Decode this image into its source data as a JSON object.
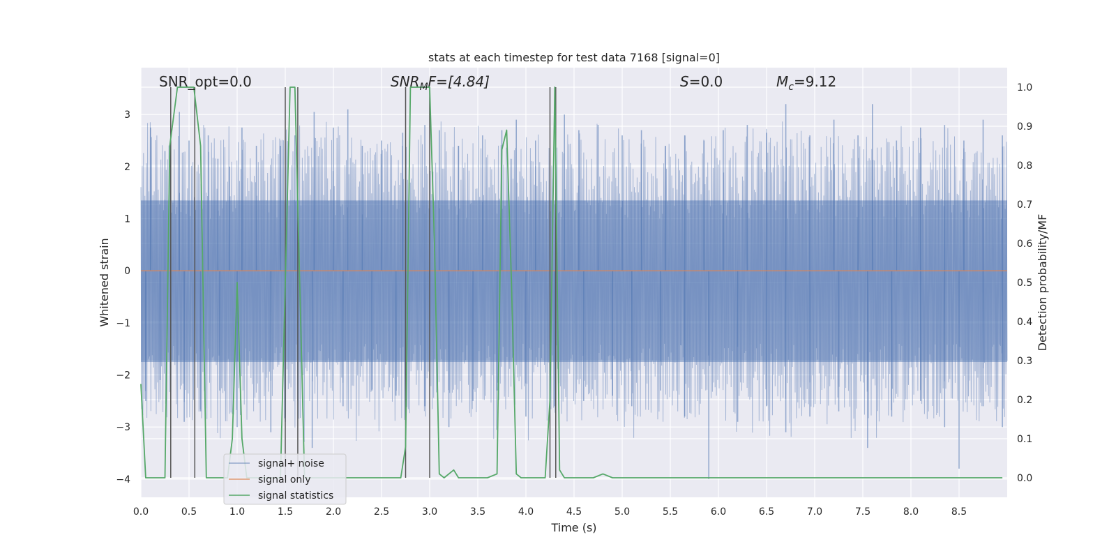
{
  "chart_data": {
    "type": "line",
    "title": "stats at each timestep for test data 7168 [signal=0]",
    "xlabel": "Time (s)",
    "ylabel": "Whitened strain",
    "y2label": "Detection probability/MF",
    "xlim": [
      0.0,
      9.0
    ],
    "ylim": [
      -4.35,
      3.9
    ],
    "y2lim": [
      -0.05,
      1.05
    ],
    "xticks": [
      "0.0",
      "0.5",
      "1.0",
      "1.5",
      "2.0",
      "2.5",
      "3.0",
      "3.5",
      "4.0",
      "4.5",
      "5.0",
      "5.5",
      "6.0",
      "6.5",
      "7.0",
      "7.5",
      "8.0",
      "8.5"
    ],
    "yticks": [
      "3",
      "2",
      "1",
      "0",
      "−1",
      "−2",
      "−3",
      "−4"
    ],
    "y2ticks": [
      "1.0",
      "0.9",
      "0.8",
      "0.7",
      "0.6",
      "0.5",
      "0.4",
      "0.3",
      "0.2",
      "0.1",
      "0.0"
    ],
    "annotations": [
      {
        "id": "snr_opt",
        "text": "SNR_opt=0.0"
      },
      {
        "id": "snr_mf",
        "text": "SNR",
        "sub": "M",
        "rest": "F=[4.84]"
      },
      {
        "id": "s",
        "text": "S",
        "rest": "=0.0"
      },
      {
        "id": "mc",
        "text": "M",
        "sub": "c",
        "rest": "=9.12"
      }
    ],
    "legend": {
      "position": "lower-left",
      "entries": [
        "signal+ noise",
        "signal only",
        "signal statistics"
      ]
    },
    "colors": {
      "background": "#eaeaf2",
      "grid": "#ffffff",
      "noise": "#4c72b0",
      "signal": "#dd8452",
      "stat": "#55a868",
      "vline": "#555555"
    },
    "series": [
      {
        "name": "signal+ noise",
        "axis": "left",
        "note": "dense whitened strain trace, roughly symmetric about 0",
        "core_band": [
          -1.75,
          1.35
        ],
        "spike_peaks_up": [
          [
            0.1,
            2.75
          ],
          [
            0.25,
            2.3
          ],
          [
            0.4,
            3.05
          ],
          [
            0.5,
            2.5
          ],
          [
            0.7,
            2.6
          ],
          [
            0.8,
            2.15
          ],
          [
            0.92,
            2.0
          ],
          [
            1.05,
            2.75
          ],
          [
            1.2,
            2.4
          ],
          [
            1.45,
            2.4
          ],
          [
            1.6,
            2.6
          ],
          [
            1.8,
            3.05
          ],
          [
            2.0,
            2.75
          ],
          [
            2.15,
            3.1
          ],
          [
            2.3,
            2.4
          ],
          [
            2.5,
            2.5
          ],
          [
            2.72,
            2.65
          ],
          [
            2.95,
            2.8
          ],
          [
            3.1,
            2.7
          ],
          [
            3.3,
            2.4
          ],
          [
            3.55,
            2.6
          ],
          [
            3.75,
            2.7
          ],
          [
            3.9,
            2.9
          ],
          [
            4.1,
            2.5
          ],
          [
            4.4,
            3.0
          ],
          [
            4.55,
            2.7
          ],
          [
            4.75,
            2.8
          ],
          [
            5.0,
            2.6
          ],
          [
            5.2,
            2.7
          ],
          [
            5.45,
            2.4
          ],
          [
            5.65,
            2.6
          ],
          [
            5.85,
            2.5
          ],
          [
            6.05,
            2.7
          ],
          [
            6.3,
            2.8
          ],
          [
            6.5,
            2.65
          ],
          [
            6.7,
            3.2
          ],
          [
            6.95,
            2.6
          ],
          [
            7.2,
            2.9
          ],
          [
            7.45,
            2.6
          ],
          [
            7.6,
            3.2
          ],
          [
            7.85,
            2.5
          ],
          [
            8.1,
            2.75
          ],
          [
            8.35,
            2.8
          ],
          [
            8.55,
            2.5
          ],
          [
            8.75,
            2.9
          ],
          [
            8.95,
            2.6
          ]
        ],
        "spike_peaks_down": [
          [
            0.05,
            -2.5
          ],
          [
            0.2,
            -2.1
          ],
          [
            0.45,
            -2.9
          ],
          [
            0.62,
            -2.7
          ],
          [
            0.82,
            -2.3
          ],
          [
            1.0,
            -3.0
          ],
          [
            1.35,
            -3.1
          ],
          [
            1.5,
            -2.9
          ],
          [
            1.78,
            -3.4
          ],
          [
            2.1,
            -2.6
          ],
          [
            2.4,
            -2.3
          ],
          [
            2.65,
            -2.4
          ],
          [
            2.95,
            -2.6
          ],
          [
            3.2,
            -3.0
          ],
          [
            3.45,
            -2.5
          ],
          [
            3.7,
            -2.3
          ],
          [
            4.0,
            -2.8
          ],
          [
            4.3,
            -2.6
          ],
          [
            4.6,
            -2.5
          ],
          [
            4.9,
            -2.4
          ],
          [
            5.1,
            -2.6
          ],
          [
            5.4,
            -2.3
          ],
          [
            5.65,
            -2.8
          ],
          [
            5.9,
            -4.0
          ],
          [
            6.2,
            -2.9
          ],
          [
            6.5,
            -2.6
          ],
          [
            6.7,
            -3.1
          ],
          [
            6.95,
            -2.8
          ],
          [
            7.25,
            -2.7
          ],
          [
            7.55,
            -3.4
          ],
          [
            7.8,
            -2.8
          ],
          [
            8.1,
            -2.5
          ],
          [
            8.35,
            -3.0
          ],
          [
            8.5,
            -3.8
          ],
          [
            8.75,
            -2.6
          ],
          [
            8.95,
            -3.0
          ]
        ]
      },
      {
        "name": "signal only",
        "axis": "left",
        "x": [
          0.0,
          9.0
        ],
        "y": [
          0.0,
          0.0
        ]
      },
      {
        "name": "signal statistics",
        "axis": "right",
        "x": [
          0.0,
          0.05,
          0.15,
          0.25,
          0.3,
          0.38,
          0.45,
          0.55,
          0.62,
          0.68,
          0.75,
          0.85,
          0.9,
          0.95,
          1.0,
          1.05,
          1.1,
          1.15,
          1.2,
          1.25,
          1.3,
          1.35,
          1.4,
          1.45,
          1.5,
          1.55,
          1.6,
          1.65,
          1.7,
          1.75,
          1.8,
          1.9,
          2.0,
          2.1,
          2.2,
          2.3,
          2.4,
          2.5,
          2.6,
          2.7,
          2.75,
          2.8,
          2.9,
          3.0,
          3.05,
          3.1,
          3.15,
          3.25,
          3.3,
          3.4,
          3.5,
          3.6,
          3.7,
          3.75,
          3.8,
          3.85,
          3.9,
          3.95,
          4.0,
          4.1,
          4.2,
          4.25,
          4.3,
          4.35,
          4.4,
          4.5,
          4.6,
          4.7,
          4.8,
          4.9,
          5.0,
          5.5,
          6.0,
          6.5,
          7.0,
          7.5,
          8.0,
          8.5,
          8.95
        ],
        "y": [
          0.24,
          0.0,
          0.0,
          0.0,
          0.85,
          1.0,
          1.0,
          1.0,
          0.85,
          0.0,
          0.0,
          0.0,
          0.0,
          0.1,
          0.5,
          0.1,
          0.0,
          0.0,
          0.0,
          0.0,
          0.0,
          0.0,
          0.0,
          0.0,
          0.5,
          1.0,
          1.0,
          0.5,
          0.0,
          0.0,
          0.0,
          0.0,
          0.0,
          0.0,
          0.0,
          0.0,
          0.0,
          0.0,
          0.0,
          0.0,
          0.08,
          1.0,
          1.0,
          1.0,
          0.6,
          0.01,
          0.0,
          0.02,
          0.0,
          0.0,
          0.0,
          0.0,
          0.01,
          0.84,
          0.89,
          0.5,
          0.01,
          0.0,
          0.0,
          0.0,
          0.0,
          0.2,
          1.0,
          0.02,
          0.0,
          0.0,
          0.0,
          0.0,
          0.01,
          0.0,
          0.0,
          0.0,
          0.0,
          0.0,
          0.0,
          0.0,
          0.0,
          0.0,
          0.0
        ]
      }
    ],
    "vertical_markers_x": [
      0.31,
      0.56,
      1.5,
      1.63,
      2.75,
      3.0,
      4.25,
      4.31
    ]
  }
}
